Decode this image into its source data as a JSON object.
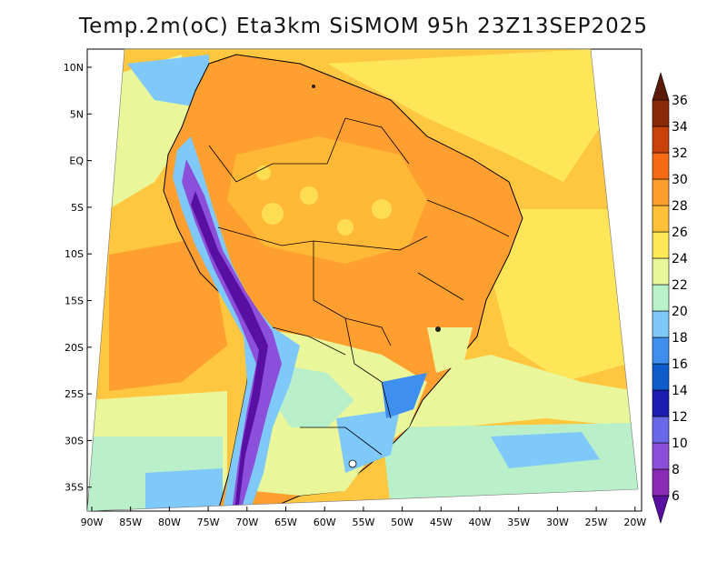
{
  "title": "Temp.2m(oC) Eta3km SiSMOM 95h 23Z13SEP2025",
  "map": {
    "variable": "2 m air temperature",
    "lon_labels": [
      "90W",
      "85W",
      "80W",
      "75W",
      "70W",
      "65W",
      "60W",
      "55W",
      "50W",
      "45W",
      "40W",
      "35W",
      "30W",
      "25W",
      "20W"
    ],
    "lat_labels": [
      "10N",
      "5N",
      "EQ",
      "5S",
      "10S",
      "15S",
      "20S",
      "25S",
      "30S",
      "35S"
    ]
  },
  "colorbar": {
    "labels": [
      "6",
      "8",
      "10",
      "12",
      "14",
      "16",
      "18",
      "20",
      "22",
      "24",
      "26",
      "28",
      "30",
      "32",
      "34",
      "36"
    ],
    "colors": [
      "#5a0fa3",
      "#8a2bb5",
      "#8c4fd9",
      "#6868e8",
      "#1c1cb0",
      "#0e5ccc",
      "#3f8ff0",
      "#7ec8fa",
      "#b9f2c9",
      "#e8f79a",
      "#ffe957",
      "#ffc13a",
      "#ff9d2d",
      "#f56a12",
      "#c9420c",
      "#8a2a08",
      "#5a1a06"
    ]
  },
  "colors": {
    "ocean_warm": "#ffc63f",
    "ocean_hot": "#ff9f30",
    "ocean_mild": "#ffe659",
    "ocean_cool": "#e9f79a",
    "ocean_cold": "#b9f0c9",
    "andes_cold": "#5a0fa3",
    "border": "#000000"
  }
}
